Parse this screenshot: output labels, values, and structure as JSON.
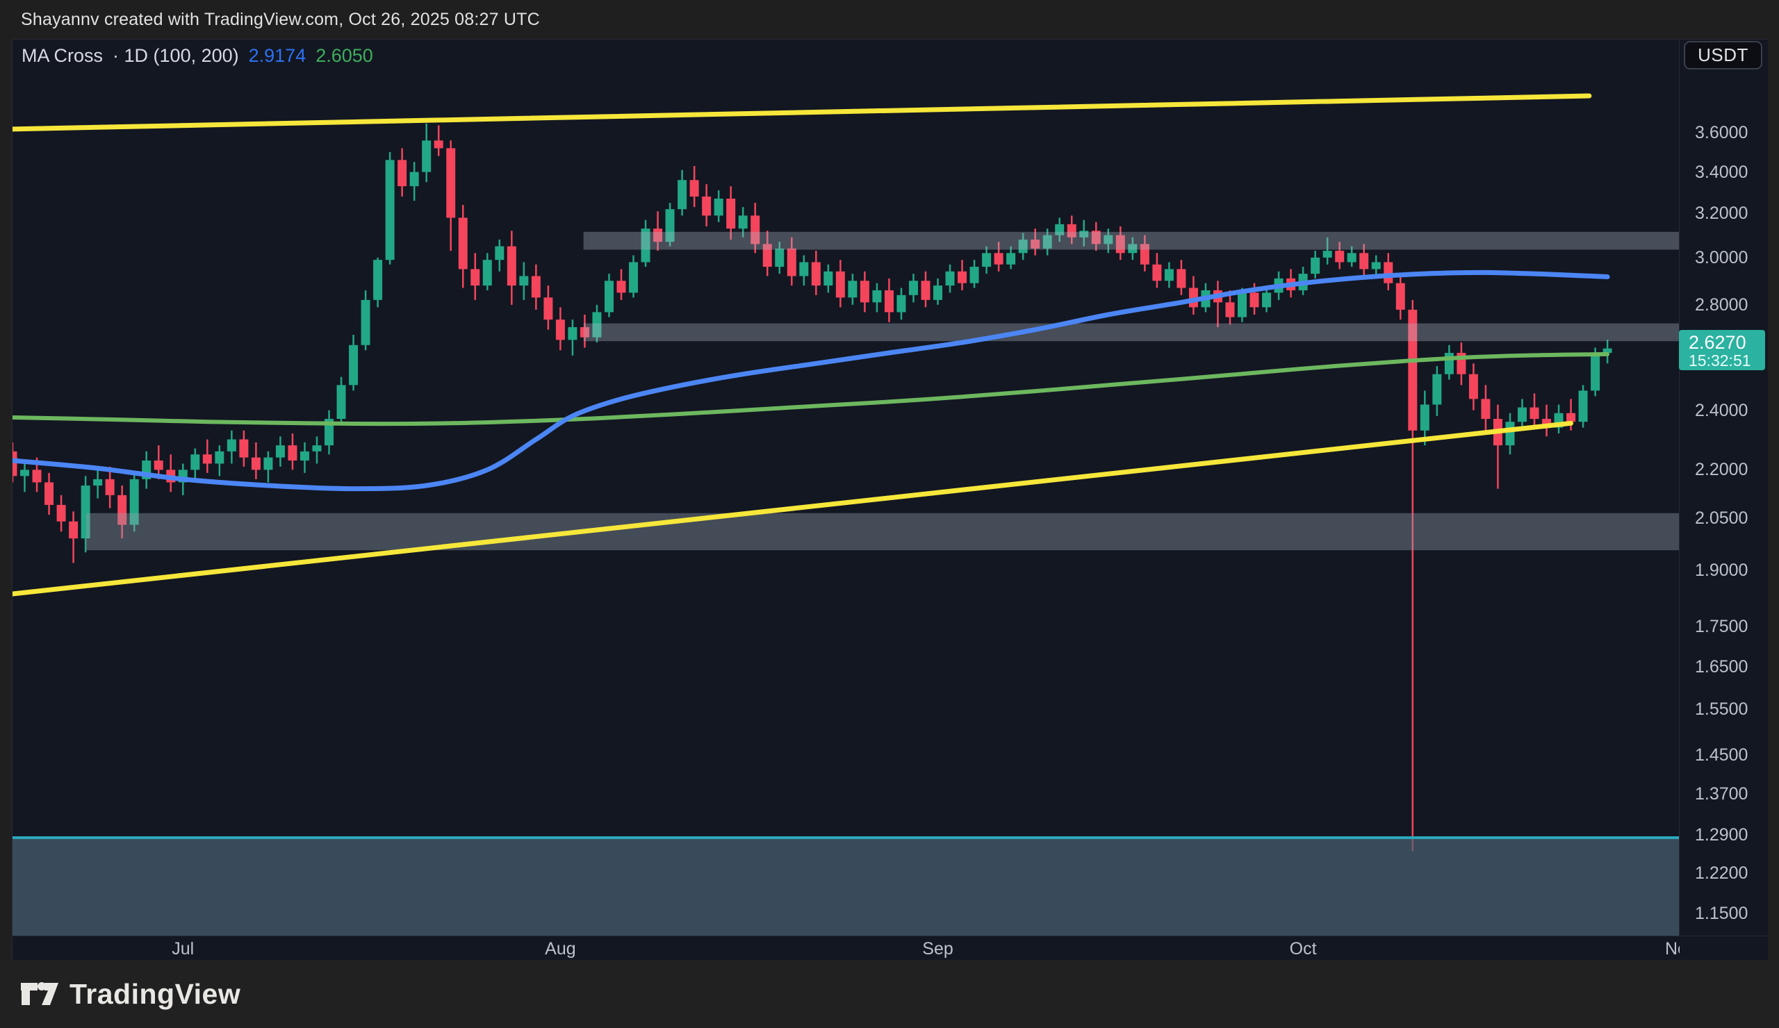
{
  "header": {
    "attribution": "Shayannv created with TradingView.com, Oct 26, 2025 08:27 UTC"
  },
  "legend": {
    "title": "MA Cross",
    "meta": "· 1D (100, 200)",
    "ma100_value": "2.9174",
    "ma200_value": "2.6050"
  },
  "axis_button": {
    "label": "USDT"
  },
  "price_label": {
    "price": "2.6270",
    "countdown": "15:32:51"
  },
  "footer": {
    "brand": "TradingView"
  },
  "colors": {
    "outer_bg": "#1f1f1f",
    "footer_bg": "#212121",
    "pane_bg": "#131722",
    "divider": "#262b36",
    "axis_text": "#bdc1cb",
    "header_text": "#e2e2e2",
    "candle_up": "#22a885",
    "candle_down": "#f4455c",
    "ma100_blue": "#4c86f5",
    "ma200_green": "#6db85f",
    "trendline_yellow": "#f6e73a",
    "zone_gray_fill": "rgba(180,188,202,0.33)",
    "zone_gray_dark_fill": "rgba(150,162,176,0.38)",
    "zone_bottom_fill": "rgba(75,100,118,0.68)",
    "zone_bottom_border": "#2aa8bd",
    "price_label_bg": "#2bb2a0",
    "legend_ma100_text": "#2d72f2",
    "legend_ma200_text": "#3fae5c"
  },
  "chart_data": {
    "type": "candlestick",
    "title": "MA Cross",
    "interval": "1D",
    "params": "(100, 200)",
    "quote_currency": "USDT",
    "last_price": 2.627,
    "countdown": "15:32:51",
    "y_axis": {
      "scale": "log",
      "side": "right",
      "visible_range": [
        1.11,
        4.12
      ],
      "ticks": [
        "3.6000",
        "3.4000",
        "3.2000",
        "3.0000",
        "2.8000",
        "2.4000",
        "2.2000",
        "2.0500",
        "1.9000",
        "1.7500",
        "1.6500",
        "1.5500",
        "1.4500",
        "1.3700",
        "1.2900",
        "1.2200",
        "1.1500"
      ]
    },
    "x_axis": {
      "month_ticks": [
        {
          "label": "Jul",
          "index": 14
        },
        {
          "label": "Aug",
          "index": 45
        },
        {
          "label": "Sep",
          "index": 76
        },
        {
          "label": "Oct",
          "index": 106
        },
        {
          "label": "Nov",
          "index": 137
        }
      ]
    },
    "candles": [
      [
        2.26,
        2.29,
        2.16,
        2.18
      ],
      [
        2.18,
        2.22,
        2.13,
        2.2
      ],
      [
        2.2,
        2.24,
        2.13,
        2.16
      ],
      [
        2.16,
        2.19,
        2.06,
        2.09
      ],
      [
        2.09,
        2.12,
        2.01,
        2.04
      ],
      [
        2.04,
        2.07,
        1.92,
        1.99
      ],
      [
        1.99,
        2.18,
        1.95,
        2.15
      ],
      [
        2.15,
        2.2,
        2.11,
        2.17
      ],
      [
        2.17,
        2.21,
        2.08,
        2.12
      ],
      [
        2.12,
        2.15,
        1.99,
        2.03
      ],
      [
        2.03,
        2.19,
        2.01,
        2.17
      ],
      [
        2.17,
        2.26,
        2.14,
        2.23
      ],
      [
        2.23,
        2.28,
        2.17,
        2.2
      ],
      [
        2.2,
        2.25,
        2.13,
        2.16
      ],
      [
        2.16,
        2.22,
        2.12,
        2.2
      ],
      [
        2.2,
        2.27,
        2.17,
        2.25
      ],
      [
        2.25,
        2.3,
        2.19,
        2.22
      ],
      [
        2.22,
        2.28,
        2.18,
        2.26
      ],
      [
        2.26,
        2.33,
        2.22,
        2.3
      ],
      [
        2.3,
        2.33,
        2.21,
        2.24
      ],
      [
        2.24,
        2.29,
        2.17,
        2.2
      ],
      [
        2.2,
        2.26,
        2.16,
        2.24
      ],
      [
        2.24,
        2.31,
        2.21,
        2.28
      ],
      [
        2.28,
        2.32,
        2.2,
        2.23
      ],
      [
        2.23,
        2.29,
        2.19,
        2.26
      ],
      [
        2.26,
        2.31,
        2.22,
        2.28
      ],
      [
        2.28,
        2.4,
        2.25,
        2.37
      ],
      [
        2.37,
        2.52,
        2.35,
        2.49
      ],
      [
        2.49,
        2.68,
        2.47,
        2.64
      ],
      [
        2.64,
        2.86,
        2.62,
        2.82
      ],
      [
        2.82,
        3.0,
        2.79,
        2.99
      ],
      [
        2.99,
        3.5,
        2.97,
        3.46
      ],
      [
        3.46,
        3.52,
        3.28,
        3.33
      ],
      [
        3.33,
        3.45,
        3.26,
        3.4
      ],
      [
        3.4,
        3.65,
        3.35,
        3.56
      ],
      [
        3.56,
        3.64,
        3.48,
        3.52
      ],
      [
        3.52,
        3.56,
        3.03,
        3.18
      ],
      [
        3.18,
        3.24,
        2.87,
        2.95
      ],
      [
        2.95,
        3.02,
        2.82,
        2.88
      ],
      [
        2.88,
        3.02,
        2.86,
        2.99
      ],
      [
        2.99,
        3.08,
        2.94,
        3.05
      ],
      [
        3.05,
        3.12,
        2.8,
        2.88
      ],
      [
        2.88,
        2.98,
        2.82,
        2.92
      ],
      [
        2.92,
        2.97,
        2.78,
        2.83
      ],
      [
        2.83,
        2.88,
        2.7,
        2.74
      ],
      [
        2.74,
        2.79,
        2.62,
        2.66
      ],
      [
        2.66,
        2.74,
        2.6,
        2.71
      ],
      [
        2.71,
        2.76,
        2.63,
        2.67
      ],
      [
        2.67,
        2.8,
        2.65,
        2.77
      ],
      [
        2.77,
        2.93,
        2.75,
        2.9
      ],
      [
        2.9,
        2.95,
        2.82,
        2.85
      ],
      [
        2.85,
        3.01,
        2.83,
        2.98
      ],
      [
        2.98,
        3.17,
        2.96,
        3.13
      ],
      [
        3.13,
        3.21,
        3.03,
        3.07
      ],
      [
        3.07,
        3.25,
        3.05,
        3.22
      ],
      [
        3.22,
        3.41,
        3.19,
        3.36
      ],
      [
        3.36,
        3.43,
        3.23,
        3.28
      ],
      [
        3.28,
        3.34,
        3.14,
        3.19
      ],
      [
        3.19,
        3.31,
        3.16,
        3.27
      ],
      [
        3.27,
        3.33,
        3.08,
        3.13
      ],
      [
        3.13,
        3.23,
        3.09,
        3.19
      ],
      [
        3.19,
        3.25,
        3.02,
        3.06
      ],
      [
        3.06,
        3.12,
        2.92,
        2.96
      ],
      [
        2.96,
        3.07,
        2.93,
        3.04
      ],
      [
        3.04,
        3.09,
        2.88,
        2.92
      ],
      [
        2.92,
        3.01,
        2.88,
        2.98
      ],
      [
        2.98,
        3.03,
        2.84,
        2.88
      ],
      [
        2.88,
        2.97,
        2.85,
        2.94
      ],
      [
        2.94,
        2.99,
        2.79,
        2.83
      ],
      [
        2.83,
        2.93,
        2.8,
        2.9
      ],
      [
        2.9,
        2.94,
        2.77,
        2.81
      ],
      [
        2.81,
        2.89,
        2.77,
        2.86
      ],
      [
        2.86,
        2.91,
        2.73,
        2.77
      ],
      [
        2.77,
        2.87,
        2.74,
        2.84
      ],
      [
        2.84,
        2.93,
        2.81,
        2.9
      ],
      [
        2.9,
        2.94,
        2.79,
        2.82
      ],
      [
        2.82,
        2.91,
        2.8,
        2.88
      ],
      [
        2.88,
        2.97,
        2.85,
        2.94
      ],
      [
        2.94,
        2.99,
        2.86,
        2.89
      ],
      [
        2.89,
        2.99,
        2.87,
        2.96
      ],
      [
        2.96,
        3.05,
        2.93,
        3.02
      ],
      [
        3.02,
        3.07,
        2.94,
        2.97
      ],
      [
        2.97,
        3.05,
        2.95,
        3.02
      ],
      [
        3.02,
        3.11,
        2.99,
        3.08
      ],
      [
        3.08,
        3.13,
        3.01,
        3.04
      ],
      [
        3.04,
        3.13,
        3.01,
        3.1
      ],
      [
        3.1,
        3.18,
        3.07,
        3.15
      ],
      [
        3.15,
        3.19,
        3.06,
        3.09
      ],
      [
        3.09,
        3.17,
        3.05,
        3.12
      ],
      [
        3.12,
        3.16,
        3.03,
        3.06
      ],
      [
        3.06,
        3.13,
        3.02,
        3.1
      ],
      [
        3.1,
        3.14,
        2.99,
        3.02
      ],
      [
        3.02,
        3.09,
        2.99,
        3.06
      ],
      [
        3.06,
        3.1,
        2.94,
        2.97
      ],
      [
        2.97,
        3.02,
        2.87,
        2.9
      ],
      [
        2.9,
        2.98,
        2.87,
        2.95
      ],
      [
        2.95,
        2.99,
        2.84,
        2.87
      ],
      [
        2.87,
        2.92,
        2.76,
        2.79
      ],
      [
        2.79,
        2.89,
        2.77,
        2.86
      ],
      [
        2.86,
        2.9,
        2.71,
        2.81
      ],
      [
        2.81,
        2.86,
        2.72,
        2.75
      ],
      [
        2.75,
        2.87,
        2.73,
        2.85
      ],
      [
        2.85,
        2.89,
        2.76,
        2.79
      ],
      [
        2.79,
        2.88,
        2.77,
        2.85
      ],
      [
        2.85,
        2.94,
        2.82,
        2.91
      ],
      [
        2.91,
        2.95,
        2.83,
        2.86
      ],
      [
        2.86,
        2.96,
        2.84,
        2.93
      ],
      [
        2.93,
        3.03,
        2.91,
        3.0
      ],
      [
        3.0,
        3.09,
        2.97,
        3.03
      ],
      [
        3.03,
        3.07,
        2.95,
        2.98
      ],
      [
        2.98,
        3.05,
        2.96,
        3.02
      ],
      [
        3.02,
        3.06,
        2.92,
        2.95
      ],
      [
        2.95,
        3.01,
        2.91,
        2.98
      ],
      [
        2.98,
        3.02,
        2.86,
        2.89
      ],
      [
        2.89,
        2.93,
        2.74,
        2.78
      ],
      [
        2.78,
        2.82,
        1.26,
        2.33
      ],
      [
        2.33,
        2.47,
        2.28,
        2.42
      ],
      [
        2.42,
        2.56,
        2.38,
        2.53
      ],
      [
        2.53,
        2.64,
        2.51,
        2.61
      ],
      [
        2.61,
        2.65,
        2.49,
        2.53
      ],
      [
        2.53,
        2.57,
        2.4,
        2.44
      ],
      [
        2.44,
        2.49,
        2.33,
        2.37
      ],
      [
        2.37,
        2.42,
        2.14,
        2.28
      ],
      [
        2.28,
        2.39,
        2.25,
        2.36
      ],
      [
        2.36,
        2.44,
        2.33,
        2.41
      ],
      [
        2.41,
        2.46,
        2.34,
        2.37
      ],
      [
        2.37,
        2.42,
        2.31,
        2.34
      ],
      [
        2.34,
        2.42,
        2.32,
        2.39
      ],
      [
        2.39,
        2.44,
        2.33,
        2.36
      ],
      [
        2.36,
        2.49,
        2.34,
        2.47
      ],
      [
        2.47,
        2.63,
        2.45,
        2.61
      ],
      [
        2.61,
        2.66,
        2.57,
        2.627
      ]
    ],
    "ma100": {
      "name": "MA 100",
      "value": 2.9174,
      "points": [
        [
          0,
          2.23
        ],
        [
          7,
          2.205
        ],
        [
          14,
          2.17
        ],
        [
          21,
          2.15
        ],
        [
          28,
          2.14
        ],
        [
          34,
          2.15
        ],
        [
          39,
          2.2
        ],
        [
          43,
          2.3
        ],
        [
          46,
          2.38
        ],
        [
          50,
          2.44
        ],
        [
          55,
          2.49
        ],
        [
          60,
          2.53
        ],
        [
          66,
          2.57
        ],
        [
          72,
          2.61
        ],
        [
          78,
          2.65
        ],
        [
          84,
          2.7
        ],
        [
          90,
          2.76
        ],
        [
          96,
          2.81
        ],
        [
          101,
          2.855
        ],
        [
          106,
          2.89
        ],
        [
          111,
          2.915
        ],
        [
          116,
          2.93
        ],
        [
          121,
          2.935
        ],
        [
          126,
          2.928
        ],
        [
          131,
          2.917
        ]
      ]
    },
    "ma200": {
      "name": "MA 200",
      "value": 2.605,
      "points": [
        [
          0,
          2.375
        ],
        [
          8,
          2.368
        ],
        [
          16,
          2.36
        ],
        [
          24,
          2.355
        ],
        [
          30,
          2.353
        ],
        [
          36,
          2.355
        ],
        [
          42,
          2.362
        ],
        [
          48,
          2.372
        ],
        [
          54,
          2.385
        ],
        [
          60,
          2.4
        ],
        [
          66,
          2.415
        ],
        [
          72,
          2.43
        ],
        [
          78,
          2.448
        ],
        [
          84,
          2.468
        ],
        [
          90,
          2.49
        ],
        [
          96,
          2.512
        ],
        [
          102,
          2.535
        ],
        [
          108,
          2.558
        ],
        [
          114,
          2.578
        ],
        [
          120,
          2.594
        ],
        [
          126,
          2.602
        ],
        [
          131,
          2.605
        ]
      ]
    },
    "trendlines": [
      {
        "name": "upper-channel-line",
        "i1": 0,
        "p1": 3.62,
        "i2": 129.5,
        "p2": 3.8
      },
      {
        "name": "lower-channel-line",
        "i1": 0,
        "p1": 1.835,
        "i2": 128,
        "p2": 2.355
      }
    ],
    "zones": [
      {
        "name": "resistance-zone-high",
        "kind": "gray",
        "i1": 46.9,
        "i2": null,
        "p_low": 3.035,
        "p_high": 3.115
      },
      {
        "name": "resistance-zone-mid",
        "kind": "gray",
        "i1": 46.9,
        "i2": null,
        "p_low": 2.655,
        "p_high": 2.725
      },
      {
        "name": "support-zone-mid",
        "kind": "gray-dark",
        "i1": 6.05,
        "i2": null,
        "p_low": 1.956,
        "p_high": 2.065
      },
      {
        "name": "support-zone-low",
        "kind": "teal-top",
        "i1": 0,
        "i2": null,
        "p_low": 1.112,
        "p_high": 1.285
      }
    ]
  }
}
